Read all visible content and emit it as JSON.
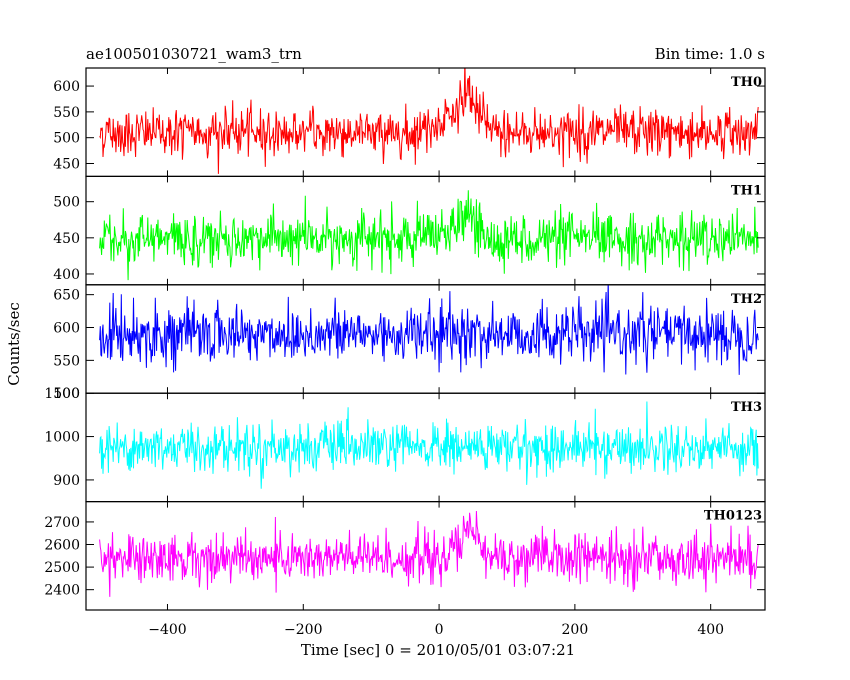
{
  "chart_data": {
    "type": "line",
    "title_left": "ae100501030721_wam3_trn",
    "title_right": "Bin time: 1.0 s",
    "xlabel": "Time [sec] 0 = 2010/05/01 03:07:21",
    "ylabel": "Counts/sec",
    "xlim": [
      -520,
      480
    ],
    "x_range": [
      -500,
      470
    ],
    "bin_time": 1.0,
    "x_ticks": [
      -400,
      -200,
      0,
      200,
      400
    ],
    "grid": false,
    "legend": "none",
    "panels": [
      {
        "name": "TH0",
        "color": "#ff0000",
        "ylim": [
          425,
          635
        ],
        "y_ticks": [
          450,
          500,
          550,
          600
        ],
        "mean": 510,
        "noise": 23,
        "bursts": [
          {
            "t": 45,
            "amp": 60,
            "width": 20
          },
          {
            "t": 10,
            "amp": 25,
            "width": 30
          }
        ]
      },
      {
        "name": "TH1",
        "color": "#00ff00",
        "ylim": [
          385,
          535
        ],
        "y_ticks": [
          400,
          450,
          500
        ],
        "mean": 448,
        "noise": 18,
        "bursts": [
          {
            "t": 40,
            "amp": 35,
            "width": 18
          }
        ]
      },
      {
        "name": "TH2",
        "color": "#0000ff",
        "ylim": [
          500,
          665
        ],
        "y_ticks": [
          500,
          550,
          600,
          650
        ],
        "mean": 590,
        "noise": 22,
        "bursts": []
      },
      {
        "name": "TH3",
        "color": "#00ffff",
        "ylim": [
          850,
          1100
        ],
        "y_ticks": [
          900,
          1000,
          1100
        ],
        "mean": 975,
        "noise": 28,
        "bursts": []
      },
      {
        "name": "TH0123",
        "color": "#ff00ff",
        "ylim": [
          2310,
          2790
        ],
        "y_ticks": [
          2400,
          2500,
          2600,
          2700
        ],
        "mean": 2540,
        "noise": 55,
        "bursts": [
          {
            "t": 45,
            "amp": 120,
            "width": 20
          }
        ]
      }
    ]
  }
}
